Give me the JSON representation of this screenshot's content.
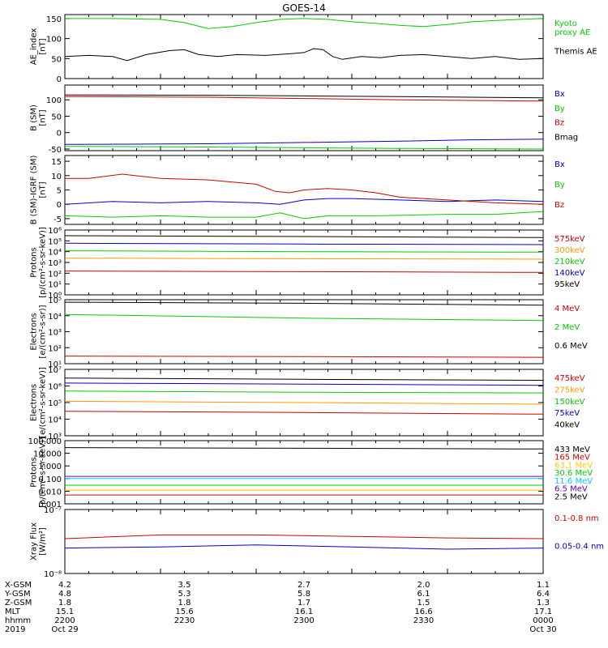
{
  "title": "GOES-14",
  "chart_data": [
    {
      "type": "line",
      "ylabel": "AE_index\n[nT]",
      "ylim": [
        0,
        160
      ],
      "yscale": "linear",
      "yticks": [
        0,
        50,
        100,
        150
      ],
      "ytick_labels": [
        "0",
        "50",
        "100",
        "150"
      ],
      "series": [
        {
          "name": "Kyoto\nproxy AE",
          "color": "#00cc00",
          "values": [
            [
              0,
              150
            ],
            [
              0.1,
              150
            ],
            [
              0.2,
              148
            ],
            [
              0.25,
              140
            ],
            [
              0.3,
              125
            ],
            [
              0.35,
              130
            ],
            [
              0.4,
              140
            ],
            [
              0.45,
              148
            ],
            [
              0.5,
              150
            ],
            [
              0.55,
              148
            ],
            [
              0.6,
              142
            ],
            [
              0.65,
              138
            ],
            [
              0.7,
              133
            ],
            [
              0.75,
              130
            ],
            [
              0.8,
              135
            ],
            [
              0.85,
              142
            ],
            [
              0.9,
              145
            ],
            [
              0.95,
              148
            ],
            [
              1,
              150
            ]
          ]
        },
        {
          "name": "Themis AE",
          "color": "#000000",
          "values": [
            [
              0,
              55
            ],
            [
              0.05,
              58
            ],
            [
              0.1,
              55
            ],
            [
              0.13,
              45
            ],
            [
              0.17,
              60
            ],
            [
              0.22,
              70
            ],
            [
              0.25,
              72
            ],
            [
              0.28,
              60
            ],
            [
              0.32,
              55
            ],
            [
              0.36,
              60
            ],
            [
              0.42,
              58
            ],
            [
              0.47,
              62
            ],
            [
              0.5,
              65
            ],
            [
              0.52,
              75
            ],
            [
              0.54,
              72
            ],
            [
              0.56,
              55
            ],
            [
              0.58,
              48
            ],
            [
              0.62,
              55
            ],
            [
              0.66,
              52
            ],
            [
              0.7,
              58
            ],
            [
              0.75,
              60
            ],
            [
              0.8,
              55
            ],
            [
              0.85,
              50
            ],
            [
              0.9,
              55
            ],
            [
              0.95,
              48
            ],
            [
              1,
              50
            ]
          ]
        }
      ]
    },
    {
      "type": "line",
      "ylabel": "B (SM)\n[nT]",
      "ylim": [
        -55,
        145
      ],
      "yscale": "linear",
      "yticks": [
        -50,
        0,
        50,
        100
      ],
      "ytick_labels": [
        "-50",
        "0",
        "50",
        "100"
      ],
      "series": [
        {
          "name": "Bx",
          "color": "#0000cc",
          "values": [
            [
              0,
              -36
            ],
            [
              0.3,
              -34
            ],
            [
              0.5,
              -30
            ],
            [
              0.7,
              -26
            ],
            [
              0.85,
              -22
            ],
            [
              1,
              -20
            ]
          ]
        },
        {
          "name": "By",
          "color": "#00cc00",
          "values": [
            [
              0,
              -42
            ],
            [
              0.3,
              -44
            ],
            [
              0.5,
              -46
            ],
            [
              0.7,
              -48
            ],
            [
              1,
              -50
            ]
          ]
        },
        {
          "name": "Bz",
          "color": "#cc0000",
          "values": [
            [
              0,
              110
            ],
            [
              0.3,
              108
            ],
            [
              0.5,
              104
            ],
            [
              0.7,
              100
            ],
            [
              1,
              96
            ]
          ]
        },
        {
          "name": "Bmag",
          "color": "#000000",
          "values": [
            [
              0,
              115
            ],
            [
              0.3,
              114
            ],
            [
              0.5,
              112
            ],
            [
              0.7,
              110
            ],
            [
              1,
              106
            ]
          ]
        }
      ]
    },
    {
      "type": "line",
      "ylabel": "B (SM)-IGRF (SM)\n[nT]",
      "ylim": [
        -7,
        17
      ],
      "yscale": "linear",
      "yticks": [
        -5,
        0,
        5,
        10,
        15
      ],
      "ytick_labels": [
        "-5",
        "0",
        "5",
        "10",
        "15"
      ],
      "series": [
        {
          "name": "Bx",
          "color": "#0000cc",
          "values": [
            [
              0,
              0
            ],
            [
              0.1,
              1
            ],
            [
              0.2,
              0.5
            ],
            [
              0.3,
              1
            ],
            [
              0.4,
              0.5
            ],
            [
              0.45,
              0
            ],
            [
              0.5,
              1.5
            ],
            [
              0.55,
              2
            ],
            [
              0.6,
              2
            ],
            [
              0.7,
              1.5
            ],
            [
              0.8,
              1
            ],
            [
              0.9,
              1.5
            ],
            [
              1,
              1
            ]
          ]
        },
        {
          "name": "By",
          "color": "#00cc00",
          "values": [
            [
              0,
              -4
            ],
            [
              0.1,
              -4.5
            ],
            [
              0.2,
              -4
            ],
            [
              0.3,
              -4.5
            ],
            [
              0.4,
              -4.5
            ],
            [
              0.45,
              -3
            ],
            [
              0.5,
              -5
            ],
            [
              0.55,
              -4
            ],
            [
              0.65,
              -4
            ],
            [
              0.8,
              -3.5
            ],
            [
              0.9,
              -3.5
            ],
            [
              1,
              -2.5
            ]
          ]
        },
        {
          "name": "Bz",
          "color": "#cc0000",
          "values": [
            [
              0,
              9
            ],
            [
              0.05,
              9
            ],
            [
              0.12,
              10.5
            ],
            [
              0.2,
              9
            ],
            [
              0.3,
              8.5
            ],
            [
              0.4,
              7
            ],
            [
              0.44,
              4.5
            ],
            [
              0.47,
              4
            ],
            [
              0.5,
              5
            ],
            [
              0.55,
              5.5
            ],
            [
              0.6,
              5
            ],
            [
              0.65,
              4
            ],
            [
              0.7,
              2.5
            ],
            [
              0.8,
              1.5
            ],
            [
              0.9,
              0.5
            ],
            [
              1,
              0
            ]
          ]
        }
      ]
    },
    {
      "type": "line",
      "ylabel": "Protons\n[p/(cm²-s-sr-keV)]",
      "yscale": "log",
      "ylim": [
        1,
        1000000
      ],
      "yticks": [
        1,
        10,
        100,
        1000,
        10000,
        100000,
        1000000
      ],
      "ytick_labels": [
        "10⁰",
        "10¹",
        "10²",
        "10³",
        "10⁴",
        "10⁵",
        "10⁶"
      ],
      "series": [
        {
          "name": "575keV",
          "color": "#cc0000",
          "values": [
            [
              0,
              160
            ],
            [
              0.5,
              140
            ],
            [
              1,
              120
            ]
          ]
        },
        {
          "name": "300keV",
          "color": "#ff9900",
          "values": [
            [
              0,
              2500
            ],
            [
              0.5,
              2200
            ],
            [
              1,
              2000
            ]
          ]
        },
        {
          "name": "210keV",
          "color": "#00cc00",
          "values": [
            [
              0,
              12000
            ],
            [
              0.5,
              10000
            ],
            [
              1,
              9000
            ]
          ]
        },
        {
          "name": "140keV",
          "color": "#0000cc",
          "values": [
            [
              0,
              60000
            ],
            [
              0.5,
              50000
            ],
            [
              1,
              45000
            ]
          ]
        },
        {
          "name": "95keV",
          "color": "#000000",
          "values": [
            [
              0,
              300000
            ],
            [
              0.5,
              250000
            ],
            [
              1,
              200000
            ]
          ]
        }
      ]
    },
    {
      "type": "line",
      "ylabel": "Electrons\n[e/(cm²-s-sr)]",
      "yscale": "log",
      "ylim": [
        10,
        100000
      ],
      "yticks": [
        10,
        100,
        1000,
        10000,
        100000
      ],
      "ytick_labels": [
        "10¹",
        "10²",
        "10³",
        "10⁴",
        "10⁵"
      ],
      "series": [
        {
          "name": "4 MeV",
          "color": "#cc0000",
          "values": [
            [
              0,
              30
            ],
            [
              0.5,
              28
            ],
            [
              1,
              25
            ]
          ]
        },
        {
          "name": "2 MeV",
          "color": "#00cc00",
          "values": [
            [
              0,
              12000
            ],
            [
              0.5,
              7000
            ],
            [
              1,
              5000
            ]
          ]
        },
        {
          "name": "0.6 MeV",
          "color": "#000000",
          "values": [
            [
              0,
              70000
            ],
            [
              0.5,
              60000
            ],
            [
              1,
              45000
            ]
          ]
        }
      ]
    },
    {
      "type": "line",
      "ylabel": "Electrons\n[e/(cm²-s-sr-keV)]",
      "yscale": "log",
      "ylim": [
        1000,
        10000000
      ],
      "yticks": [
        1000,
        10000,
        100000,
        1000000,
        10000000
      ],
      "ytick_labels": [
        "10³",
        "10⁴",
        "10⁵",
        "10⁶",
        "10⁷"
      ],
      "series": [
        {
          "name": "475keV",
          "color": "#cc0000",
          "values": [
            [
              0,
              30000
            ],
            [
              0.5,
              25000
            ],
            [
              1,
              20000
            ]
          ]
        },
        {
          "name": "275keV",
          "color": "#ff9900",
          "values": [
            [
              0,
              120000
            ],
            [
              0.5,
              100000
            ],
            [
              1,
              80000
            ]
          ]
        },
        {
          "name": "150keV",
          "color": "#00cc00",
          "values": [
            [
              0,
              500000
            ],
            [
              0.5,
              420000
            ],
            [
              1,
              380000
            ]
          ]
        },
        {
          "name": "75keV",
          "color": "#0000cc",
          "values": [
            [
              0,
              1500000
            ],
            [
              0.5,
              1300000
            ],
            [
              1,
              1100000
            ]
          ]
        },
        {
          "name": "40keV",
          "color": "#000000",
          "values": [
            [
              0,
              3000000
            ],
            [
              0.5,
              2500000
            ],
            [
              1,
              2200000
            ]
          ]
        }
      ]
    },
    {
      "type": "line",
      "ylabel": "Protons\n[p/(cm²-s-sr-keV)]",
      "yscale": "log",
      "ylim": [
        0.001,
        100
      ],
      "yticks": [
        0.001,
        0.01,
        0.1,
        1,
        10,
        100
      ],
      "ytick_labels": [
        "0.001",
        "0.010",
        "0.100",
        "1.000",
        "10.000",
        "100.000"
      ],
      "series": [
        {
          "name": "433 MeV",
          "color": "#000000",
          "values": [
            [
              0,
              28
            ],
            [
              0.5,
              25
            ],
            [
              1,
              22
            ]
          ]
        },
        {
          "name": "165 MeV",
          "color": "#cc0000",
          "values": [
            [
              0,
              0.005
            ],
            [
              0.5,
              0.005
            ],
            [
              1,
              0.005
            ]
          ]
        },
        {
          "name": "63.1 MeV",
          "color": "#ffcc00",
          "values": [
            [
              0,
              0.012
            ],
            [
              0.5,
              0.012
            ],
            [
              1,
              0.012
            ]
          ]
        },
        {
          "name": "30.6 MeV",
          "color": "#00cc00",
          "values": [
            [
              0,
              0.03
            ],
            [
              0.5,
              0.03
            ],
            [
              1,
              0.03
            ]
          ]
        },
        {
          "name": "11.6 MeV",
          "color": "#00ccff",
          "values": [
            [
              0,
              0.1
            ],
            [
              0.5,
              0.1
            ],
            [
              1,
              0.1
            ]
          ]
        },
        {
          "name": "6.5 MeV",
          "color": "#6600cc",
          "values": [
            [
              0,
              0.15
            ],
            [
              0.5,
              0.15
            ],
            [
              1,
              0.15
            ]
          ]
        },
        {
          "name": "2.5 MeV",
          "color": "#000000",
          "values": []
        }
      ]
    },
    {
      "type": "line",
      "ylabel": "Xray Flux\n[W/m²]",
      "yscale": "log",
      "ylim": [
        1e-08,
        1e-07
      ],
      "yticks": [
        1e-08,
        1e-07
      ],
      "ytick_labels": [
        "10⁻⁸",
        "10⁻⁷"
      ],
      "series": [
        {
          "name": "0.1-0.8 nm",
          "color": "#cc0000",
          "values": [
            [
              0,
              3.5e-08
            ],
            [
              0.2,
              4e-08
            ],
            [
              0.4,
              4e-08
            ],
            [
              0.6,
              3.8e-08
            ],
            [
              0.8,
              3.6e-08
            ],
            [
              1,
              3.5e-08
            ]
          ]
        },
        {
          "name": "0.05-0.4 nm",
          "color": "#0000cc",
          "values": [
            [
              0,
              2.5e-08
            ],
            [
              0.2,
              2.6e-08
            ],
            [
              0.4,
              2.8e-08
            ],
            [
              0.6,
              2.6e-08
            ],
            [
              0.8,
              2.4e-08
            ],
            [
              1,
              2.5e-08
            ]
          ]
        }
      ]
    }
  ],
  "xaxis": {
    "row_labels": [
      "X-GSM",
      "Y-GSM",
      "Z-GSM",
      "MLT",
      "hhmm",
      "2019"
    ],
    "columns": [
      [
        "4.2",
        "4.8",
        "1.8",
        "15.1",
        "2200",
        "Oct 29"
      ],
      [
        "3.5",
        "5.3",
        "1.8",
        "15.6",
        "2230",
        ""
      ],
      [
        "2.7",
        "5.8",
        "1.7",
        "16.1",
        "2300",
        ""
      ],
      [
        "2.0",
        "6.1",
        "1.5",
        "16.6",
        "2330",
        ""
      ],
      [
        "1.1",
        "6.4",
        "1.3",
        "17.1",
        "0000",
        "Oct 30"
      ]
    ]
  }
}
